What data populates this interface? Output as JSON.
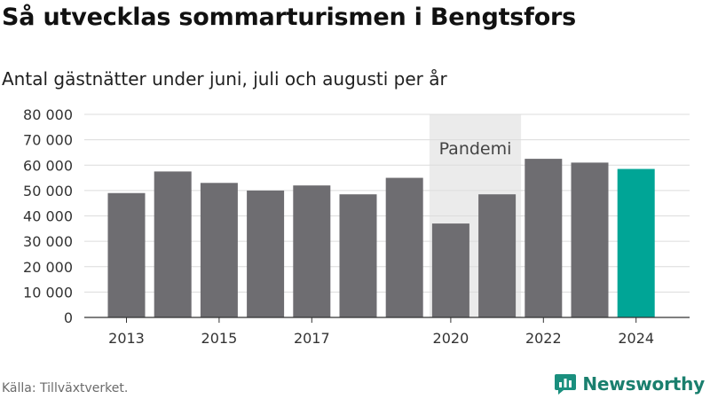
{
  "title": "Så utvecklas sommarturismen i Bengtsfors",
  "subtitle": "Antal gästnätter under juni, juli och augusti per år",
  "source": "Källa: Tillväxtverket.",
  "brand": {
    "name": "Newsworthy",
    "icon": "newsworthy-logo-icon",
    "color": "#1a8f7e"
  },
  "colors": {
    "bar": "#6e6d71",
    "highlight": "#00a596",
    "shade": "#ebebeb",
    "grid": "#dcdcdc"
  },
  "chart_data": {
    "type": "bar",
    "categories": [
      "2013",
      "2014",
      "2015",
      "2016",
      "2017",
      "2018",
      "2019",
      "2020",
      "2021",
      "2022",
      "2023",
      "2024"
    ],
    "values": [
      49000,
      57500,
      53000,
      50000,
      52000,
      48500,
      55000,
      37000,
      48500,
      62500,
      61000,
      58500
    ],
    "highlight_category": "2024",
    "x_tick_labels": [
      "2013",
      "2015",
      "2017",
      "2020",
      "2022",
      "2024"
    ],
    "y_ticks": [
      "0",
      "10 000",
      "20 000",
      "30 000",
      "40 000",
      "50 000",
      "60 000",
      "70 000",
      "80 000"
    ],
    "ylim": [
      0,
      80000
    ],
    "grid": true,
    "annotation": {
      "label": "Pandemi",
      "from": "2020",
      "to": "2021"
    }
  }
}
